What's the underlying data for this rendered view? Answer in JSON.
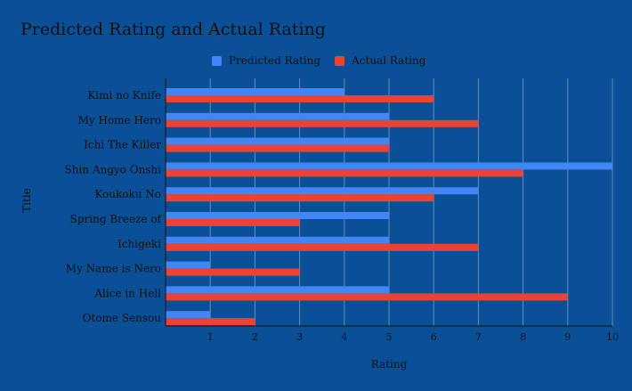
{
  "chart_data": {
    "type": "bar",
    "orientation": "horizontal",
    "title": "Predicted Rating and Actual Rating",
    "xlabel": "Rating",
    "ylabel": "Title",
    "categories": [
      "Kimi no Knife",
      "My Home Hero",
      "Ichi The Killer",
      "Shin Angyo Onshi",
      "Koukoku No",
      "Spring Breeze of",
      "Ichigeki",
      "My Name is Nero",
      "Alice in Hell",
      "Otome Sensou"
    ],
    "series": [
      {
        "name": "Predicted Rating",
        "color": "#4285f4",
        "values": [
          4,
          5,
          5,
          10,
          7,
          5,
          5,
          1,
          5,
          1
        ]
      },
      {
        "name": "Actual Rating",
        "color": "#ea4335",
        "values": [
          6,
          7,
          5,
          8,
          6,
          3,
          7,
          3,
          9,
          2
        ]
      }
    ],
    "xlim": [
      0,
      10
    ],
    "xticks": [
      1,
      2,
      3,
      4,
      5,
      6,
      7,
      8,
      9,
      10
    ],
    "grid": true,
    "legend_position": "top"
  }
}
